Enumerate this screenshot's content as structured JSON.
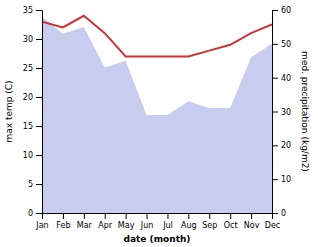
{
  "chart_data": {
    "type": "line",
    "xlabel": "date (month)",
    "ylabel": "max temp (C)",
    "y2label": "med. precipitation (kg/m2)",
    "categories": [
      "Jan",
      "Feb",
      "Mar",
      "Apr",
      "May",
      "Jun",
      "Jul",
      "Aug",
      "Sep",
      "Oct",
      "Nov",
      "Dec"
    ],
    "series": [
      {
        "type": "area",
        "axis": "y2",
        "color": "#c8cdf0",
        "values": [
          58.0,
          53.0,
          55.0,
          43.0,
          45.0,
          29.0,
          29.0,
          33.0,
          31.0,
          31.0,
          46.0,
          50.0
        ]
      },
      {
        "type": "line",
        "color": "#cc3333",
        "values": [
          33.0,
          32.0,
          34.0,
          31.0,
          27.0,
          27.0,
          27.0,
          27.0,
          28.0,
          29.0,
          31.0,
          32.5
        ]
      }
    ],
    "ylim": [
      0,
      35
    ],
    "yticks": [
      0,
      5,
      10,
      15,
      20,
      25,
      30,
      35
    ],
    "y2lim": [
      0,
      60
    ],
    "y2ticks": [
      0,
      10,
      20,
      30,
      40,
      50,
      60
    ],
    "grid": false
  }
}
